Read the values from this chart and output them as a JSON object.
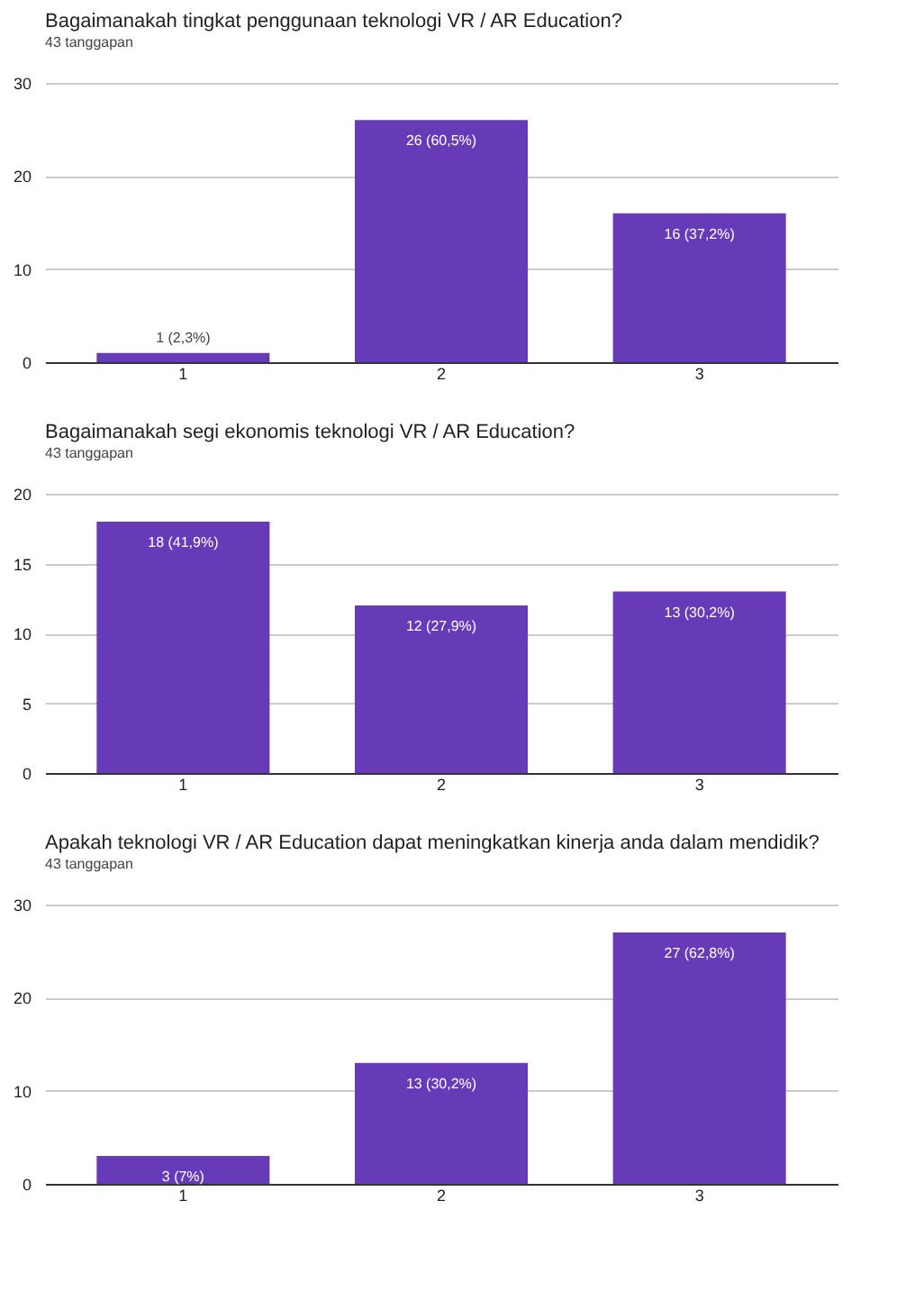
{
  "chart_data": [
    {
      "type": "bar",
      "title": "Bagaimanakah tingkat penggunaan teknologi VR / AR Education?",
      "subtitle": "43 tanggapan",
      "categories": [
        "1",
        "2",
        "3"
      ],
      "values": [
        1,
        26,
        16
      ],
      "value_labels": [
        "1 (2,3%)",
        "26 (60,5%)",
        "16 (37,2%)"
      ],
      "color": "#673ab7",
      "ylim": [
        0,
        30
      ],
      "yticks": [
        0,
        10,
        20,
        30
      ],
      "grid": "y"
    },
    {
      "type": "bar",
      "title": "Bagaimanakah segi ekonomis teknologi VR / AR Education?",
      "subtitle": "43 tanggapan",
      "categories": [
        "1",
        "2",
        "3"
      ],
      "values": [
        18,
        12,
        13
      ],
      "value_labels": [
        "18 (41,9%)",
        "12 (27,9%)",
        "13 (30,2%)"
      ],
      "color": "#673ab7",
      "ylim": [
        0,
        20
      ],
      "yticks": [
        0,
        5,
        10,
        15,
        20
      ],
      "grid": "y"
    },
    {
      "type": "bar",
      "title": "Apakah teknologi VR / AR Education dapat meningkatkan kinerja anda dalam mendidik?",
      "subtitle": "43 tanggapan",
      "categories": [
        "1",
        "2",
        "3"
      ],
      "values": [
        3,
        13,
        27
      ],
      "value_labels": [
        "3 (7%)",
        "13 (30,2%)",
        "27 (62,8%)"
      ],
      "color": "#673ab7",
      "ylim": [
        0,
        30
      ],
      "yticks": [
        0,
        10,
        20,
        30
      ],
      "grid": "y"
    }
  ]
}
